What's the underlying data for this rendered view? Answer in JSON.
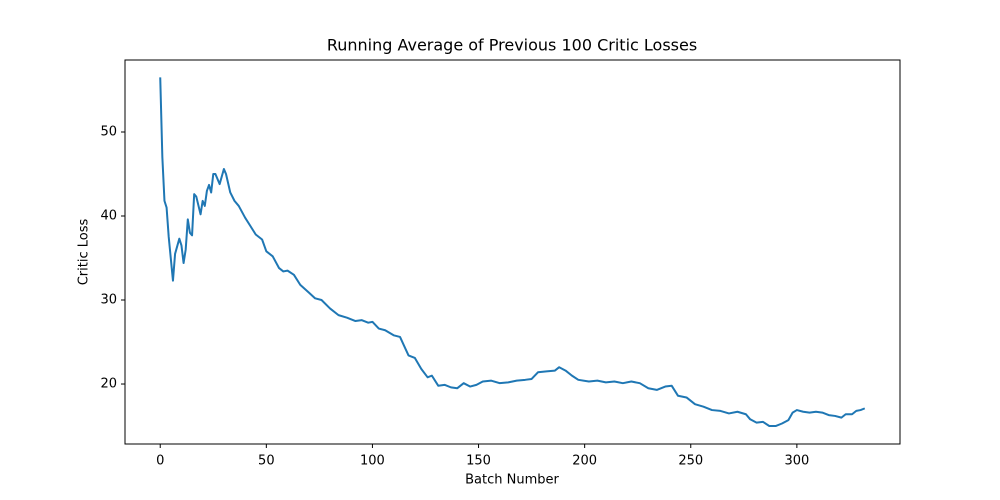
{
  "chart_data": {
    "type": "line",
    "title": "Running Average of Previous 100 Critic Losses",
    "x_label": "Batch Number",
    "y_label": "Critic Loss",
    "xlim": [
      -16.6,
      348.6
    ],
    "ylim": [
      12.86,
      58.57
    ],
    "xticks": [
      0,
      50,
      100,
      150,
      200,
      250,
      300
    ],
    "yticks": [
      20,
      30,
      40,
      50
    ],
    "series": [
      {
        "color": "#1f77b4",
        "x": [
          0,
          1,
          2,
          3,
          4,
          6,
          7,
          9,
          10,
          11,
          12,
          13,
          14,
          15,
          16,
          17,
          19,
          20,
          21,
          22,
          23,
          24,
          25,
          26,
          28,
          30,
          31,
          33,
          35,
          37,
          40,
          42,
          45,
          48,
          50,
          53,
          56,
          58,
          60,
          63,
          66,
          70,
          73,
          76,
          80,
          84,
          88,
          92,
          95,
          98,
          100,
          103,
          106,
          110,
          113,
          115,
          117,
          120,
          123,
          126,
          128,
          131,
          134,
          137,
          140,
          143,
          146,
          149,
          152,
          156,
          160,
          164,
          168,
          172,
          175,
          178,
          182,
          186,
          188,
          191,
          194,
          197,
          202,
          206,
          210,
          214,
          218,
          222,
          226,
          230,
          234,
          238,
          241,
          244,
          248,
          252,
          256,
          260,
          264,
          268,
          272,
          276,
          278,
          281,
          284,
          287,
          290,
          293,
          296,
          298,
          300,
          303,
          306,
          309,
          312,
          315,
          318,
          321,
          323,
          326,
          328,
          330,
          332
        ],
        "values": [
          56.5,
          47,
          41.8,
          41,
          37.5,
          32.3,
          35.5,
          37.3,
          36.5,
          34.4,
          36,
          39.6,
          38,
          37.7,
          42.6,
          42.3,
          40.2,
          41.8,
          41.2,
          43,
          43.7,
          42.8,
          45,
          45,
          43.8,
          45.6,
          45,
          42.8,
          41.8,
          41.2,
          39.8,
          39,
          37.8,
          37.2,
          35.8,
          35.2,
          33.8,
          33.4,
          33.5,
          33,
          31.8,
          30.9,
          30.2,
          30,
          29,
          28.2,
          27.9,
          27.5,
          27.6,
          27.3,
          27.4,
          26.6,
          26.4,
          25.8,
          25.6,
          24.5,
          23.4,
          23.1,
          21.8,
          20.8,
          21,
          19.8,
          19.9,
          19.6,
          19.5,
          20.1,
          19.7,
          19.9,
          20.3,
          20.4,
          20.1,
          20.2,
          20.4,
          20.5,
          20.6,
          21.4,
          21.5,
          21.6,
          22,
          21.6,
          21,
          20.5,
          20.3,
          20.4,
          20.2,
          20.3,
          20.1,
          20.3,
          20.1,
          19.5,
          19.3,
          19.7,
          19.8,
          18.6,
          18.4,
          17.6,
          17.3,
          16.9,
          16.8,
          16.5,
          16.7,
          16.4,
          15.8,
          15.4,
          15.5,
          15,
          15,
          15.3,
          15.7,
          16.6,
          16.9,
          16.7,
          16.6,
          16.7,
          16.6,
          16.3,
          16.2,
          16,
          16.4,
          16.4,
          16.8,
          16.9,
          17.1
        ]
      }
    ]
  }
}
